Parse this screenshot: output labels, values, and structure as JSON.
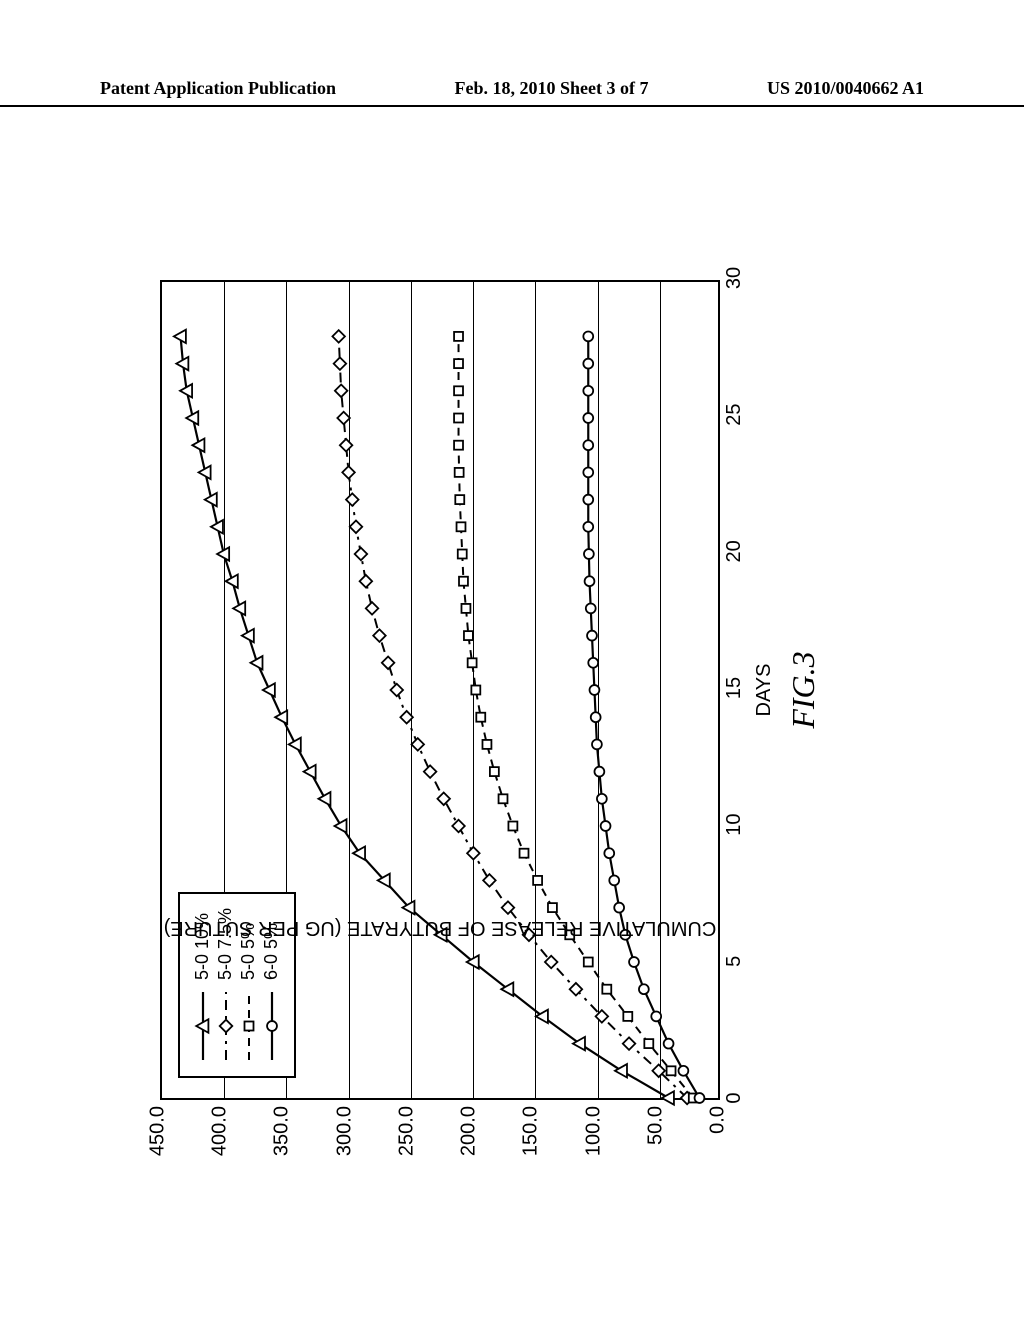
{
  "header": {
    "left": "Patent Application Publication",
    "center": "Feb. 18, 2010   Sheet 3 of 7",
    "right": "US 2010/0040662 A1"
  },
  "figure": {
    "fig_label": "FIG.3",
    "x_label": "DAYS",
    "y_label": "CUMULATIVE RELEASE OF BUTYRATE (UG PER SUTURE)",
    "xlim": [
      0,
      30
    ],
    "ylim": [
      0,
      450
    ],
    "x_ticks": [
      0,
      5,
      10,
      15,
      20,
      25,
      30
    ],
    "y_ticks": [
      0,
      50,
      100,
      150,
      200,
      250,
      300,
      350,
      400,
      450
    ],
    "y_tick_labels": [
      "0.0",
      "50.0",
      "100.0",
      "150.0",
      "200.0",
      "250.0",
      "300.0",
      "350.0",
      "400.0",
      "450.0"
    ],
    "gridlines_y": [
      50,
      100,
      150,
      200,
      250,
      300,
      350,
      400
    ],
    "background_color": "#ffffff",
    "grid_color": "#000000",
    "border_color": "#000000",
    "series": [
      {
        "name": "5-0  10%",
        "marker": "triangle",
        "marker_fill": "none",
        "marker_stroke": "#000000",
        "marker_size": 9,
        "line_color": "#000000",
        "line_width": 2.2,
        "dash": "none",
        "x": [
          0,
          1,
          2,
          3,
          4,
          5,
          6,
          7,
          8,
          9,
          10,
          11,
          12,
          13,
          14,
          15,
          16,
          17,
          18,
          19,
          20,
          21,
          22,
          23,
          24,
          25,
          26,
          27,
          28
        ],
        "y": [
          40,
          78,
          112,
          142,
          170,
          198,
          224,
          250,
          270,
          290,
          305,
          318,
          330,
          342,
          353,
          363,
          373,
          380,
          387,
          393,
          400,
          405,
          410,
          415,
          420,
          425,
          430,
          433,
          435
        ]
      },
      {
        "name": "5-0  7.5%",
        "marker": "diamond",
        "marker_fill": "none",
        "marker_stroke": "#000000",
        "marker_size": 9,
        "line_color": "#000000",
        "line_width": 2.0,
        "dash": "dashdot",
        "x": [
          0,
          1,
          2,
          3,
          4,
          5,
          6,
          7,
          8,
          9,
          10,
          11,
          12,
          13,
          14,
          15,
          16,
          17,
          18,
          19,
          20,
          21,
          22,
          23,
          24,
          25,
          26,
          27,
          28
        ],
        "y": [
          25,
          48,
          72,
          94,
          115,
          135,
          153,
          170,
          185,
          198,
          210,
          222,
          233,
          243,
          252,
          260,
          267,
          274,
          280,
          285,
          289,
          293,
          296,
          299,
          301,
          303,
          305,
          306,
          307
        ]
      },
      {
        "name": "5-0  5%",
        "marker": "square",
        "marker_fill": "none",
        "marker_stroke": "#000000",
        "marker_size": 9,
        "line_color": "#000000",
        "line_width": 2.0,
        "dash": "dashed",
        "x": [
          0,
          1,
          2,
          3,
          4,
          5,
          6,
          7,
          8,
          9,
          10,
          11,
          12,
          13,
          14,
          15,
          16,
          17,
          18,
          19,
          20,
          21,
          22,
          23,
          24,
          25,
          26,
          27,
          28
        ],
        "y": [
          20,
          38,
          56,
          73,
          90,
          105,
          120,
          134,
          146,
          157,
          166,
          174,
          181,
          187,
          192,
          196,
          199,
          202,
          204,
          206,
          207,
          208,
          209,
          209.5,
          210,
          210,
          210,
          210,
          210
        ]
      },
      {
        "name": "6-0  5%",
        "marker": "circle",
        "marker_fill": "none",
        "marker_stroke": "#000000",
        "marker_size": 9,
        "line_color": "#000000",
        "line_width": 2.2,
        "dash": "none",
        "x": [
          0,
          1,
          2,
          3,
          4,
          5,
          6,
          7,
          8,
          9,
          10,
          11,
          12,
          13,
          14,
          15,
          16,
          17,
          18,
          19,
          20,
          21,
          22,
          23,
          24,
          25,
          26,
          27,
          28
        ],
        "y": [
          15,
          28,
          40,
          50,
          60,
          68,
          75,
          80,
          84,
          88,
          91,
          94,
          96,
          98,
          99,
          100,
          101,
          102,
          103,
          104,
          104.5,
          105,
          105,
          105,
          105,
          105,
          105,
          105,
          105
        ]
      }
    ],
    "legend_labels": [
      "5-0  10%",
      "5-0  7.5%",
      "5-0  5%",
      "6-0  5%"
    ]
  }
}
